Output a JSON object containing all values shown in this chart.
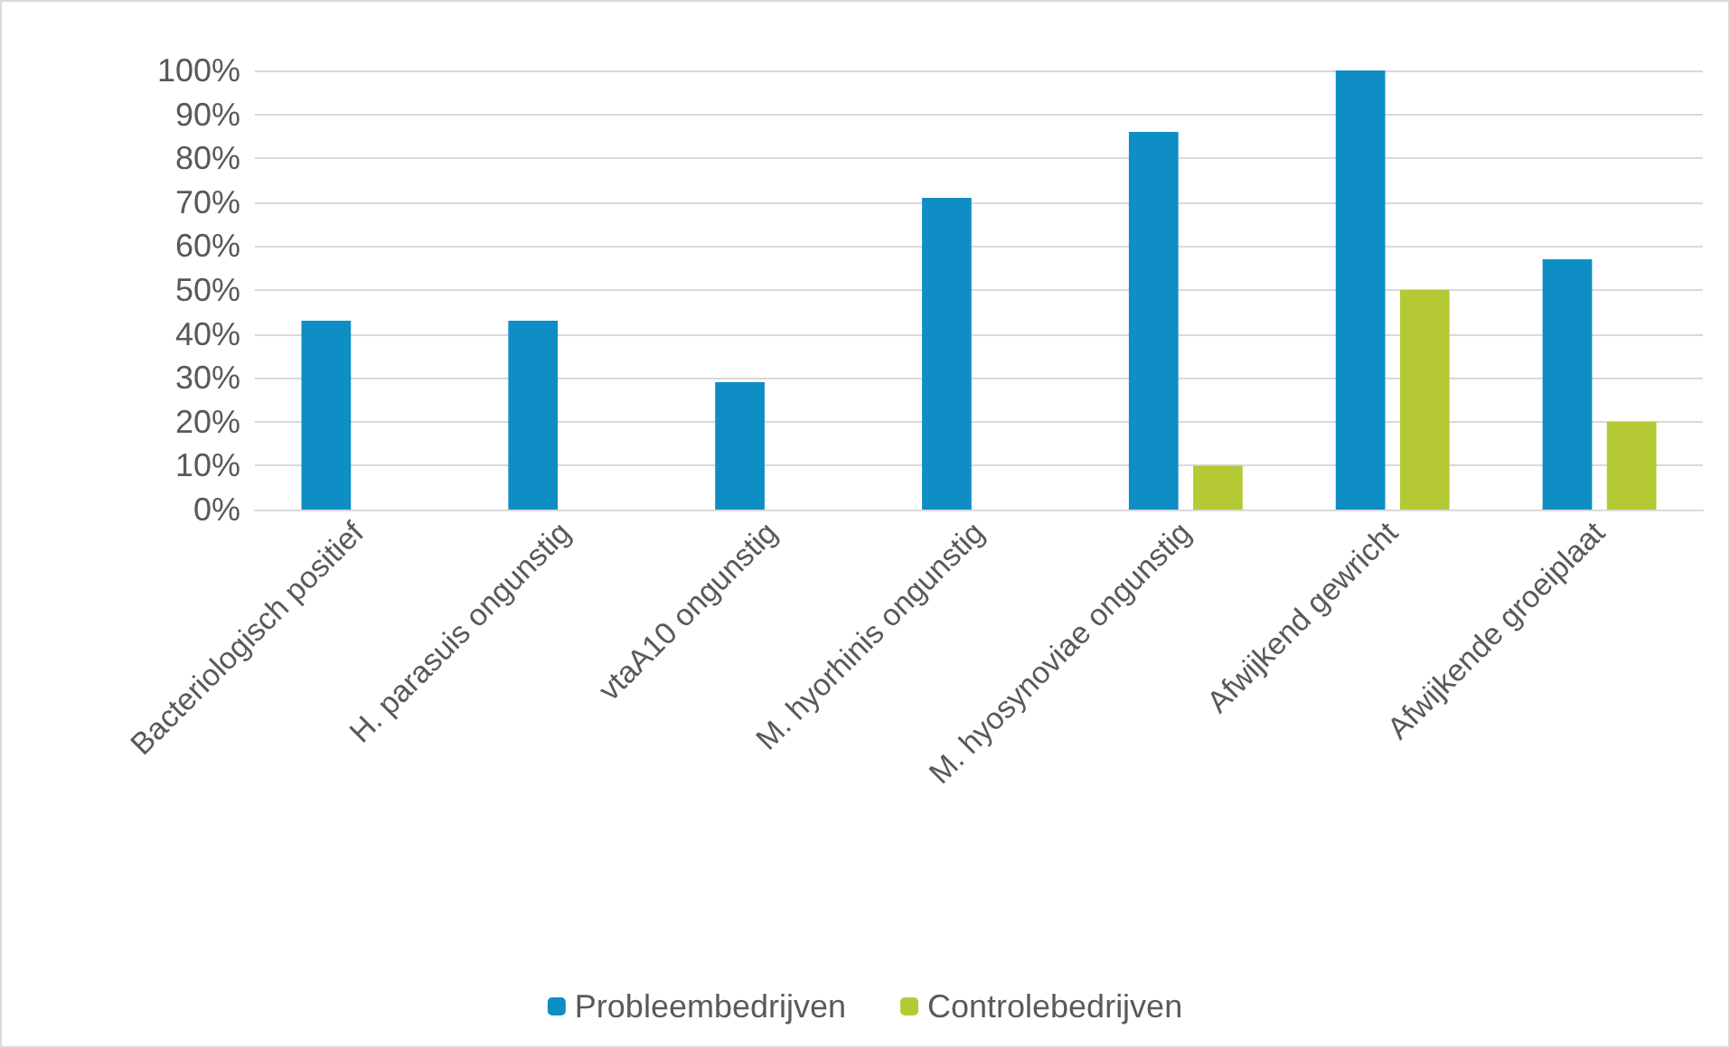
{
  "chart_data": {
    "type": "bar",
    "categories": [
      "Bacteriologisch positief",
      "H. parasuis ongunstig",
      "vtaA10 ongunstig",
      "M. hyorhinis ongunstig",
      "M. hyosynoviae ongunstig",
      "Afwijkend gewricht",
      "Afwijkende groeiplaat"
    ],
    "series": [
      {
        "name": "Probleembedrijven",
        "color": "#0e8ec5",
        "values": [
          43,
          43,
          29,
          71,
          86,
          100,
          57
        ]
      },
      {
        "name": "Controlebedrijven",
        "color": "#b5c935",
        "values": [
          0,
          0,
          0,
          0,
          10,
          50,
          20
        ]
      }
    ],
    "ylim": [
      0,
      100
    ],
    "yticks": [
      {
        "value": 0,
        "label": "0%"
      },
      {
        "value": 10,
        "label": "10%"
      },
      {
        "value": 20,
        "label": "20%"
      },
      {
        "value": 30,
        "label": "30%"
      },
      {
        "value": 40,
        "label": "40%"
      },
      {
        "value": 50,
        "label": "50%"
      },
      {
        "value": 60,
        "label": "60%"
      },
      {
        "value": 70,
        "label": "70%"
      },
      {
        "value": 80,
        "label": "80%"
      },
      {
        "value": 90,
        "label": "90%"
      },
      {
        "value": 100,
        "label": "100%"
      }
    ],
    "grid": "y",
    "legend": "bottom"
  }
}
